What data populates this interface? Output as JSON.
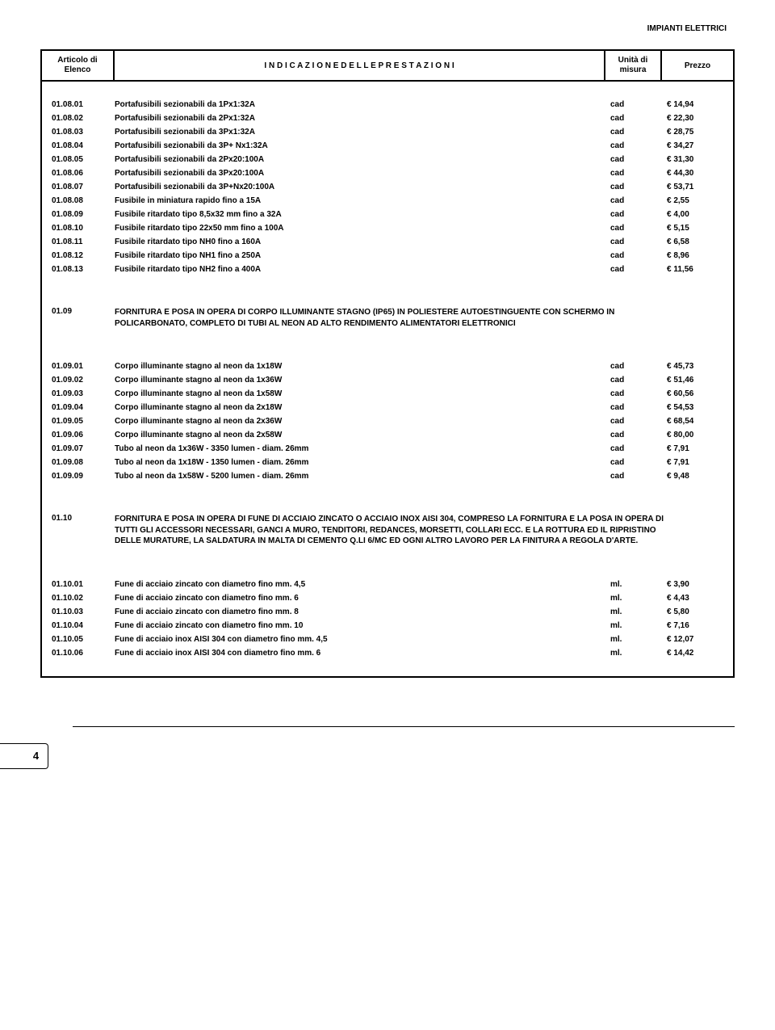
{
  "headerRight": "IMPIANTI ELETTRICI",
  "columns": {
    "art1": "Articolo di",
    "art2": "Elenco",
    "desc": "I N D I C A Z I O N E   D E L L E   P R E S T A Z I O N I",
    "unit1": "Unità di",
    "unit2": "misura",
    "price": "Prezzo"
  },
  "rowsA": [
    {
      "code": "01.08.01",
      "desc": "Portafusibili sezionabili da 1Px1:32A",
      "unit": "cad",
      "price": "€ 14,94"
    },
    {
      "code": "01.08.02",
      "desc": "Portafusibili sezionabili da 2Px1:32A",
      "unit": "cad",
      "price": "€ 22,30"
    },
    {
      "code": "01.08.03",
      "desc": "Portafusibili sezionabili da 3Px1:32A",
      "unit": "cad",
      "price": "€ 28,75"
    },
    {
      "code": "01.08.04",
      "desc": "Portafusibili sezionabili da 3P+ Nx1:32A",
      "unit": "cad",
      "price": "€ 34,27"
    },
    {
      "code": "01.08.05",
      "desc": "Portafusibili sezionabili da 2Px20:100A",
      "unit": "cad",
      "price": "€ 31,30"
    },
    {
      "code": "01.08.06",
      "desc": "Portafusibili sezionabili da 3Px20:100A",
      "unit": "cad",
      "price": "€ 44,30"
    },
    {
      "code": "01.08.07",
      "desc": "Portafusibili sezionabili da 3P+Nx20:100A",
      "unit": "cad",
      "price": "€ 53,71"
    },
    {
      "code": "01.08.08",
      "desc": "Fusibile in miniatura rapido fino a 15A",
      "unit": "cad",
      "price": "€ 2,55"
    },
    {
      "code": "01.08.09",
      "desc": "Fusibile ritardato tipo 8,5x32 mm fino a 32A",
      "unit": "cad",
      "price": "€ 4,00"
    },
    {
      "code": "01.08.10",
      "desc": "Fusibile ritardato tipo 22x50 mm fino a 100A",
      "unit": "cad",
      "price": "€ 5,15"
    },
    {
      "code": "01.08.11",
      "desc": "Fusibile ritardato tipo NH0 fino a 160A",
      "unit": "cad",
      "price": "€ 6,58"
    },
    {
      "code": "01.08.12",
      "desc": "Fusibile ritardato tipo NH1 fino a 250A",
      "unit": "cad",
      "price": "€ 8,96"
    },
    {
      "code": "01.08.13",
      "desc": "Fusibile ritardato tipo NH2 fino a 400A",
      "unit": "cad",
      "price": "€ 11,56"
    }
  ],
  "sectionB": {
    "code": "01.09",
    "desc": "FORNITURA E POSA IN OPERA DI CORPO ILLUMINANTE STAGNO (IP65) IN POLIESTERE AUTOESTINGUENTE CON SCHERMO IN POLICARBONATO, COMPLETO DI TUBI AL NEON AD ALTO RENDIMENTO ALIMENTATORI ELETTRONICI"
  },
  "rowsB": [
    {
      "code": "01.09.01",
      "desc": "Corpo illuminante stagno al neon da 1x18W",
      "unit": "cad",
      "price": "€ 45,73"
    },
    {
      "code": "01.09.02",
      "desc": "Corpo illuminante stagno al neon da 1x36W",
      "unit": "cad",
      "price": "€ 51,46"
    },
    {
      "code": "01.09.03",
      "desc": "Corpo illuminante stagno al neon da 1x58W",
      "unit": "cad",
      "price": "€ 60,56"
    },
    {
      "code": "01.09.04",
      "desc": "Corpo illuminante stagno al neon da 2x18W",
      "unit": "cad",
      "price": "€ 54,53"
    },
    {
      "code": "01.09.05",
      "desc": "Corpo illuminante stagno al neon da 2x36W",
      "unit": "cad",
      "price": "€ 68,54"
    },
    {
      "code": "01.09.06",
      "desc": "Corpo illuminante stagno al neon da 2x58W",
      "unit": "cad",
      "price": "€ 80,00"
    },
    {
      "code": "01.09.07",
      "desc": "Tubo al neon da 1x36W - 3350 lumen - diam. 26mm",
      "unit": "cad",
      "price": "€ 7,91"
    },
    {
      "code": "01.09.08",
      "desc": "Tubo al neon da 1x18W - 1350 lumen - diam. 26mm",
      "unit": "cad",
      "price": "€ 7,91"
    },
    {
      "code": "01.09.09",
      "desc": "Tubo al neon da 1x58W - 5200 lumen - diam. 26mm",
      "unit": "cad",
      "price": "€ 9,48"
    }
  ],
  "sectionC": {
    "code": "01.10",
    "desc": "FORNITURA E POSA IN OPERA DI FUNE DI ACCIAIO ZINCATO O ACCIAIO INOX AISI 304, COMPRESO LA FORNITURA E LA POSA IN OPERA DI TUTTI GLI ACCESSORI  NECESSARI, GANCI A MURO, TENDITORI, REDANCES, MORSETTI, COLLARI ECC. E LA ROTTURA ED IL RIPRISTINO DELLE MURATURE, LA SALDATURA IN MALTA DI CEMENTO Q.LI 6/MC ED OGNI ALTRO LAVORO PER LA FINITURA A REGOLA D'ARTE."
  },
  "rowsC": [
    {
      "code": "01.10.01",
      "desc": "Fune di acciaio zincato con diametro fino mm. 4,5",
      "unit": "ml.",
      "price": "€ 3,90"
    },
    {
      "code": "01.10.02",
      "desc": "Fune di acciaio zincato con diametro fino mm. 6",
      "unit": "ml.",
      "price": "€ 4,43"
    },
    {
      "code": "01.10.03",
      "desc": "Fune di acciaio zincato con diametro fino mm. 8",
      "unit": "ml.",
      "price": "€ 5,80"
    },
    {
      "code": "01.10.04",
      "desc": "Fune di acciaio zincato con diametro fino mm. 10",
      "unit": "ml.",
      "price": "€ 7,16"
    },
    {
      "code": "01.10.05",
      "desc": "Fune di acciaio inox AISI 304 con diametro fino mm. 4,5",
      "unit": "ml.",
      "price": "€ 12,07"
    },
    {
      "code": "01.10.06",
      "desc": "Fune di acciaio inox AISI 304 con diametro fino mm. 6",
      "unit": "ml.",
      "price": "€ 14,42"
    }
  ],
  "pageNumber": "4"
}
